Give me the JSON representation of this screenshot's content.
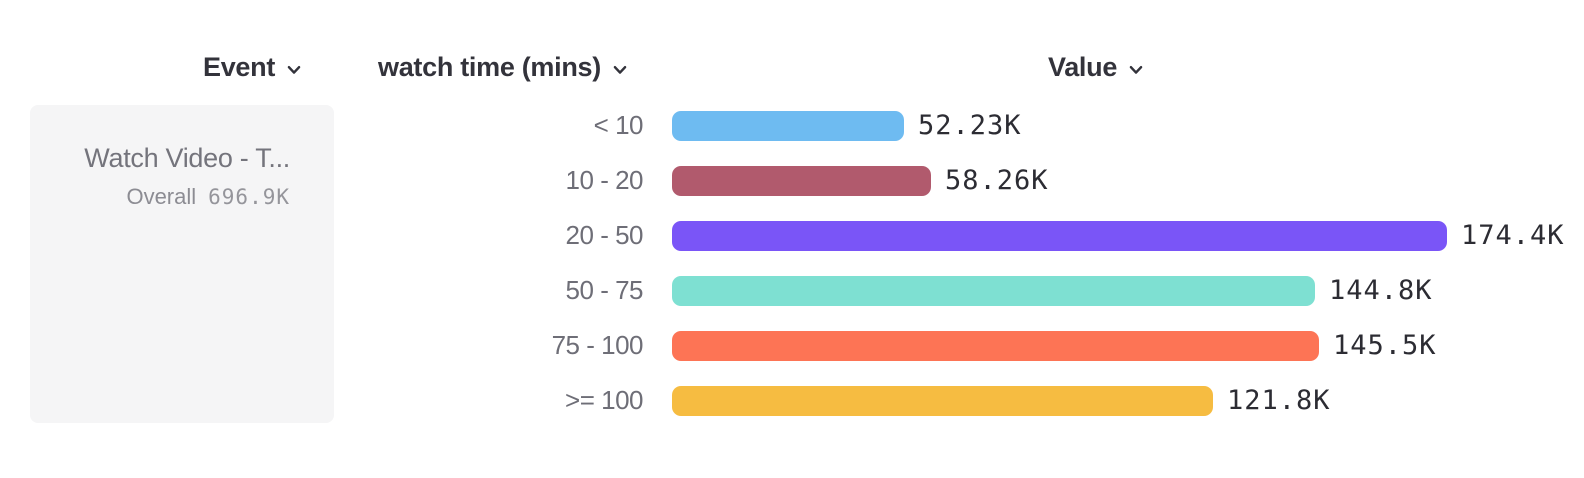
{
  "header": {
    "event_label": "Event",
    "breakdown_label": "watch time (mins)",
    "value_label": "Value"
  },
  "event_card": {
    "name": "Watch Video - T...",
    "overall_label": "Overall",
    "overall_value": "696.9K"
  },
  "icons": {
    "dropdown": "chevron-down"
  },
  "colors": {
    "header_text": "#33333b",
    "row_label_text": "#6e6e77",
    "value_text": "#2c2c33",
    "card_background": "#f5f5f6",
    "card_title_text": "#74747c",
    "card_overall_text": "#8c8c93"
  },
  "chart_data": {
    "type": "bar",
    "orientation": "horizontal",
    "title": "",
    "xlabel": "Value",
    "ylabel": "watch time (mins)",
    "grid": false,
    "legend": "none",
    "xlim": [
      0,
      174400
    ],
    "categories": [
      "< 10",
      "10 - 20",
      "20 - 50",
      "50 - 75",
      "75 - 100",
      ">= 100"
    ],
    "values": [
      52230,
      58260,
      174400,
      144800,
      145500,
      121800
    ],
    "value_labels": [
      "52.23K",
      "58.26K",
      "174.4K",
      "144.8K",
      "145.5K",
      "121.8K"
    ],
    "bar_colors": [
      "#6ebbf1",
      "#b15a6d",
      "#7a55f7",
      "#7ee0d2",
      "#fd7455",
      "#f6bc41"
    ]
  }
}
